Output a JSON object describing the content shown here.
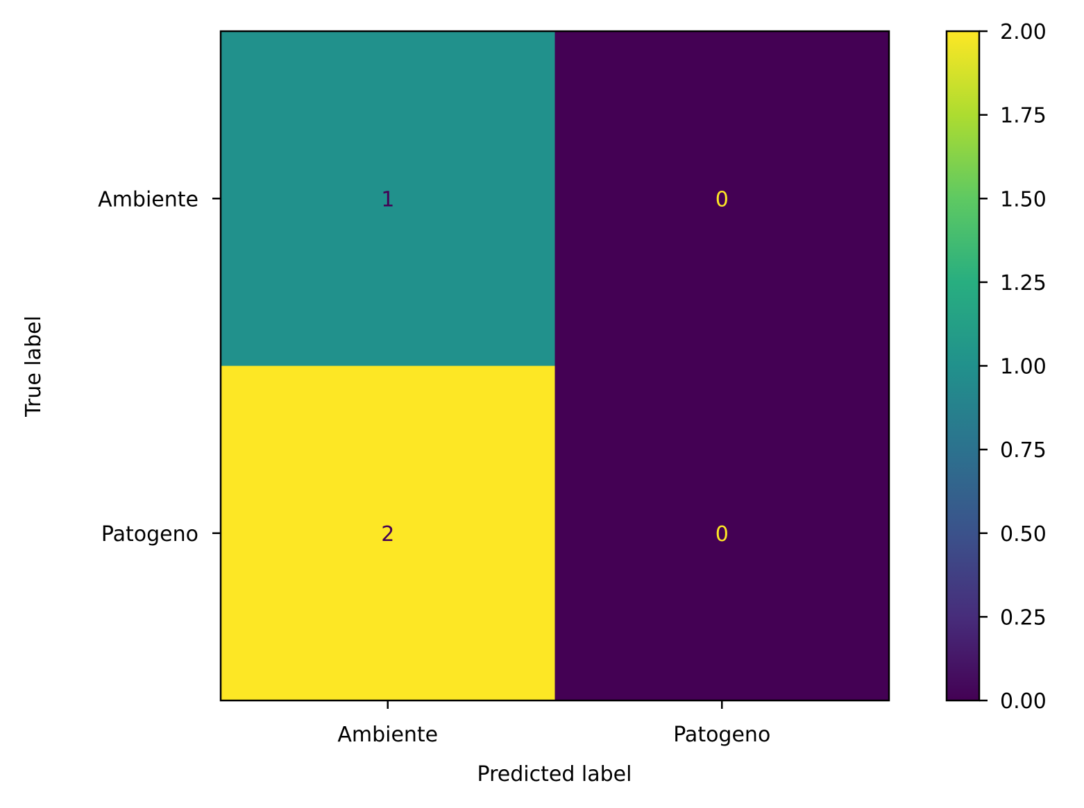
{
  "chart_data": {
    "type": "heatmap",
    "title": "",
    "xlabel": "Predicted label",
    "ylabel": "True label",
    "x_categories": [
      "Ambiente",
      "Patogeno"
    ],
    "y_categories": [
      "Ambiente",
      "Patogeno"
    ],
    "matrix": [
      [
        1,
        0
      ],
      [
        2,
        0
      ]
    ],
    "colormap": "viridis",
    "colorbar": {
      "min": 0,
      "max": 2,
      "ticks": [
        "0.00",
        "0.25",
        "0.50",
        "0.75",
        "1.00",
        "1.25",
        "1.50",
        "1.75",
        "2.00"
      ]
    },
    "cell_text_colors": {
      "dark_cell": "#fde725",
      "light_cell": "#440154"
    }
  }
}
